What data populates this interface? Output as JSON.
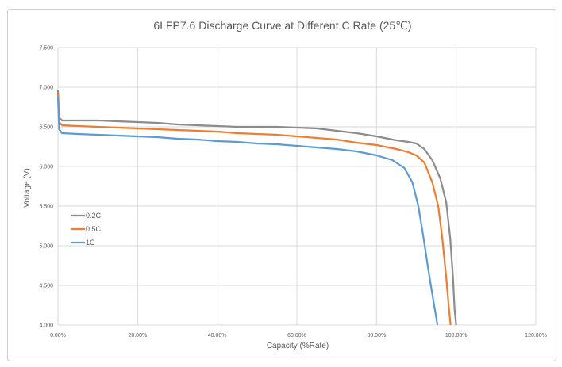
{
  "chart_data": {
    "type": "line",
    "title": "6LFP7.6 Discharge Curve at Different C Rate (25℃)",
    "xlabel": "Capacity (%Rate)",
    "ylabel": "Voltage (V)",
    "xlim": [
      0,
      120
    ],
    "ylim": [
      4.0,
      7.5
    ],
    "xticks": [
      "0.00%",
      "20.00%",
      "40.00%",
      "60.00%",
      "80.00%",
      "100.00%",
      "120.00%"
    ],
    "yticks": [
      "4.000",
      "4.500",
      "5.000",
      "5.500",
      "6.000",
      "6.500",
      "7.000",
      "7.500"
    ],
    "grid": true,
    "legend": "left",
    "series": [
      {
        "name": "0.2C",
        "color": "#8c8c8c",
        "points": [
          [
            0,
            6.96
          ],
          [
            0.3,
            6.62
          ],
          [
            1,
            6.58
          ],
          [
            5,
            6.58
          ],
          [
            10,
            6.58
          ],
          [
            15,
            6.57
          ],
          [
            20,
            6.56
          ],
          [
            25,
            6.55
          ],
          [
            30,
            6.53
          ],
          [
            35,
            6.52
          ],
          [
            40,
            6.51
          ],
          [
            45,
            6.5
          ],
          [
            50,
            6.5
          ],
          [
            55,
            6.5
          ],
          [
            60,
            6.49
          ],
          [
            65,
            6.48
          ],
          [
            70,
            6.45
          ],
          [
            75,
            6.42
          ],
          [
            80,
            6.38
          ],
          [
            85,
            6.33
          ],
          [
            88,
            6.31
          ],
          [
            90,
            6.29
          ],
          [
            92,
            6.22
          ],
          [
            94,
            6.08
          ],
          [
            96,
            5.85
          ],
          [
            97.5,
            5.55
          ],
          [
            98.5,
            5.1
          ],
          [
            99.2,
            4.6
          ],
          [
            99.6,
            4.2
          ],
          [
            100,
            4.0
          ]
        ]
      },
      {
        "name": "0.5C",
        "color": "#ed7d31",
        "points": [
          [
            0,
            6.92
          ],
          [
            0.3,
            6.56
          ],
          [
            1,
            6.52
          ],
          [
            5,
            6.51
          ],
          [
            10,
            6.5
          ],
          [
            15,
            6.49
          ],
          [
            20,
            6.48
          ],
          [
            25,
            6.47
          ],
          [
            30,
            6.46
          ],
          [
            35,
            6.45
          ],
          [
            40,
            6.44
          ],
          [
            45,
            6.42
          ],
          [
            50,
            6.41
          ],
          [
            55,
            6.4
          ],
          [
            60,
            6.38
          ],
          [
            65,
            6.36
          ],
          [
            70,
            6.34
          ],
          [
            75,
            6.3
          ],
          [
            80,
            6.27
          ],
          [
            85,
            6.22
          ],
          [
            88,
            6.18
          ],
          [
            90,
            6.14
          ],
          [
            92,
            6.05
          ],
          [
            94,
            5.8
          ],
          [
            95.5,
            5.5
          ],
          [
            96.5,
            5.1
          ],
          [
            97.5,
            4.6
          ],
          [
            98.2,
            4.2
          ],
          [
            98.6,
            4.0
          ]
        ]
      },
      {
        "name": "1C",
        "color": "#5b9bd5",
        "points": [
          [
            0,
            6.88
          ],
          [
            0.3,
            6.47
          ],
          [
            1,
            6.42
          ],
          [
            5,
            6.41
          ],
          [
            10,
            6.4
          ],
          [
            15,
            6.39
          ],
          [
            20,
            6.38
          ],
          [
            25,
            6.37
          ],
          [
            30,
            6.35
          ],
          [
            35,
            6.34
          ],
          [
            40,
            6.32
          ],
          [
            45,
            6.31
          ],
          [
            50,
            6.29
          ],
          [
            55,
            6.28
          ],
          [
            60,
            6.26
          ],
          [
            65,
            6.24
          ],
          [
            70,
            6.22
          ],
          [
            75,
            6.19
          ],
          [
            80,
            6.14
          ],
          [
            84,
            6.08
          ],
          [
            87,
            5.98
          ],
          [
            89,
            5.8
          ],
          [
            90.5,
            5.5
          ],
          [
            91.8,
            5.1
          ],
          [
            93,
            4.7
          ],
          [
            94.3,
            4.3
          ],
          [
            95.3,
            4.0
          ]
        ]
      }
    ]
  }
}
